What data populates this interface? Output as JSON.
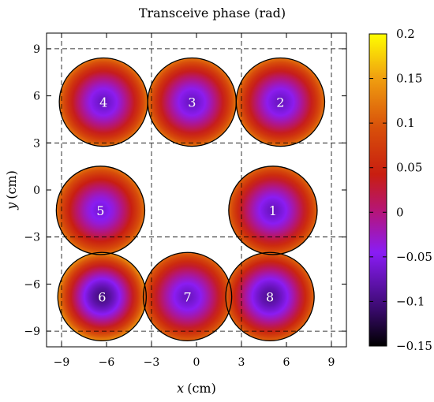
{
  "chart_data": {
    "type": "heatmap",
    "title": "Transceive phase (rad)",
    "xlabel_var": "x",
    "xlabel_unit": "(cm)",
    "ylabel_var": "y",
    "ylabel_unit": "(cm)",
    "xlim": [
      -10,
      10
    ],
    "ylim": [
      -10,
      10
    ],
    "x_ticks": [
      -9,
      -6,
      -3,
      0,
      3,
      6,
      9
    ],
    "x_tick_labels": [
      "−9",
      "−6",
      "−3",
      "0",
      "3",
      "6",
      "9"
    ],
    "y_ticks": [
      9,
      6,
      3,
      0,
      -3,
      -6,
      -9
    ],
    "y_tick_labels": [
      "9",
      "6",
      "3",
      "0",
      "−3",
      "−6",
      "−9"
    ],
    "grid": true,
    "grid_style": "dashed",
    "grid_lines_x": [
      -9,
      -3,
      3,
      9
    ],
    "grid_lines_y": [
      9,
      3,
      -3,
      -9
    ],
    "colorbar": {
      "min": -0.15,
      "max": 0.2,
      "ticks": [
        0.2,
        0.15,
        0.1,
        0.05,
        0,
        -0.05,
        -0.1,
        -0.15
      ],
      "tick_labels": [
        "0.2",
        "0.15",
        "0.1",
        "0.05",
        "0",
        "−0.05",
        "−0.1",
        "−0.15"
      ],
      "colormap": "black-purple-red-orange-yellow"
    },
    "coil_radius_cm": 2.95,
    "coils": [
      {
        "label": "1",
        "x": 5.1,
        "y": -1.3,
        "center_phase": -0.07,
        "edge_phase": 0.11
      },
      {
        "label": "2",
        "x": 5.6,
        "y": 5.6,
        "center_phase": -0.07,
        "edge_phase": 0.12
      },
      {
        "label": "3",
        "x": -0.3,
        "y": 5.6,
        "center_phase": -0.07,
        "edge_phase": 0.12
      },
      {
        "label": "4",
        "x": -6.2,
        "y": 5.6,
        "center_phase": -0.07,
        "edge_phase": 0.12
      },
      {
        "label": "5",
        "x": -6.4,
        "y": -1.3,
        "center_phase": -0.06,
        "edge_phase": 0.12
      },
      {
        "label": "6",
        "x": -6.3,
        "y": -6.8,
        "center_phase": -0.1,
        "edge_phase": 0.14
      },
      {
        "label": "7",
        "x": -0.6,
        "y": -6.8,
        "center_phase": -0.07,
        "edge_phase": 0.11
      },
      {
        "label": "8",
        "x": 4.9,
        "y": -6.8,
        "center_phase": -0.09,
        "edge_phase": 0.11
      }
    ]
  }
}
